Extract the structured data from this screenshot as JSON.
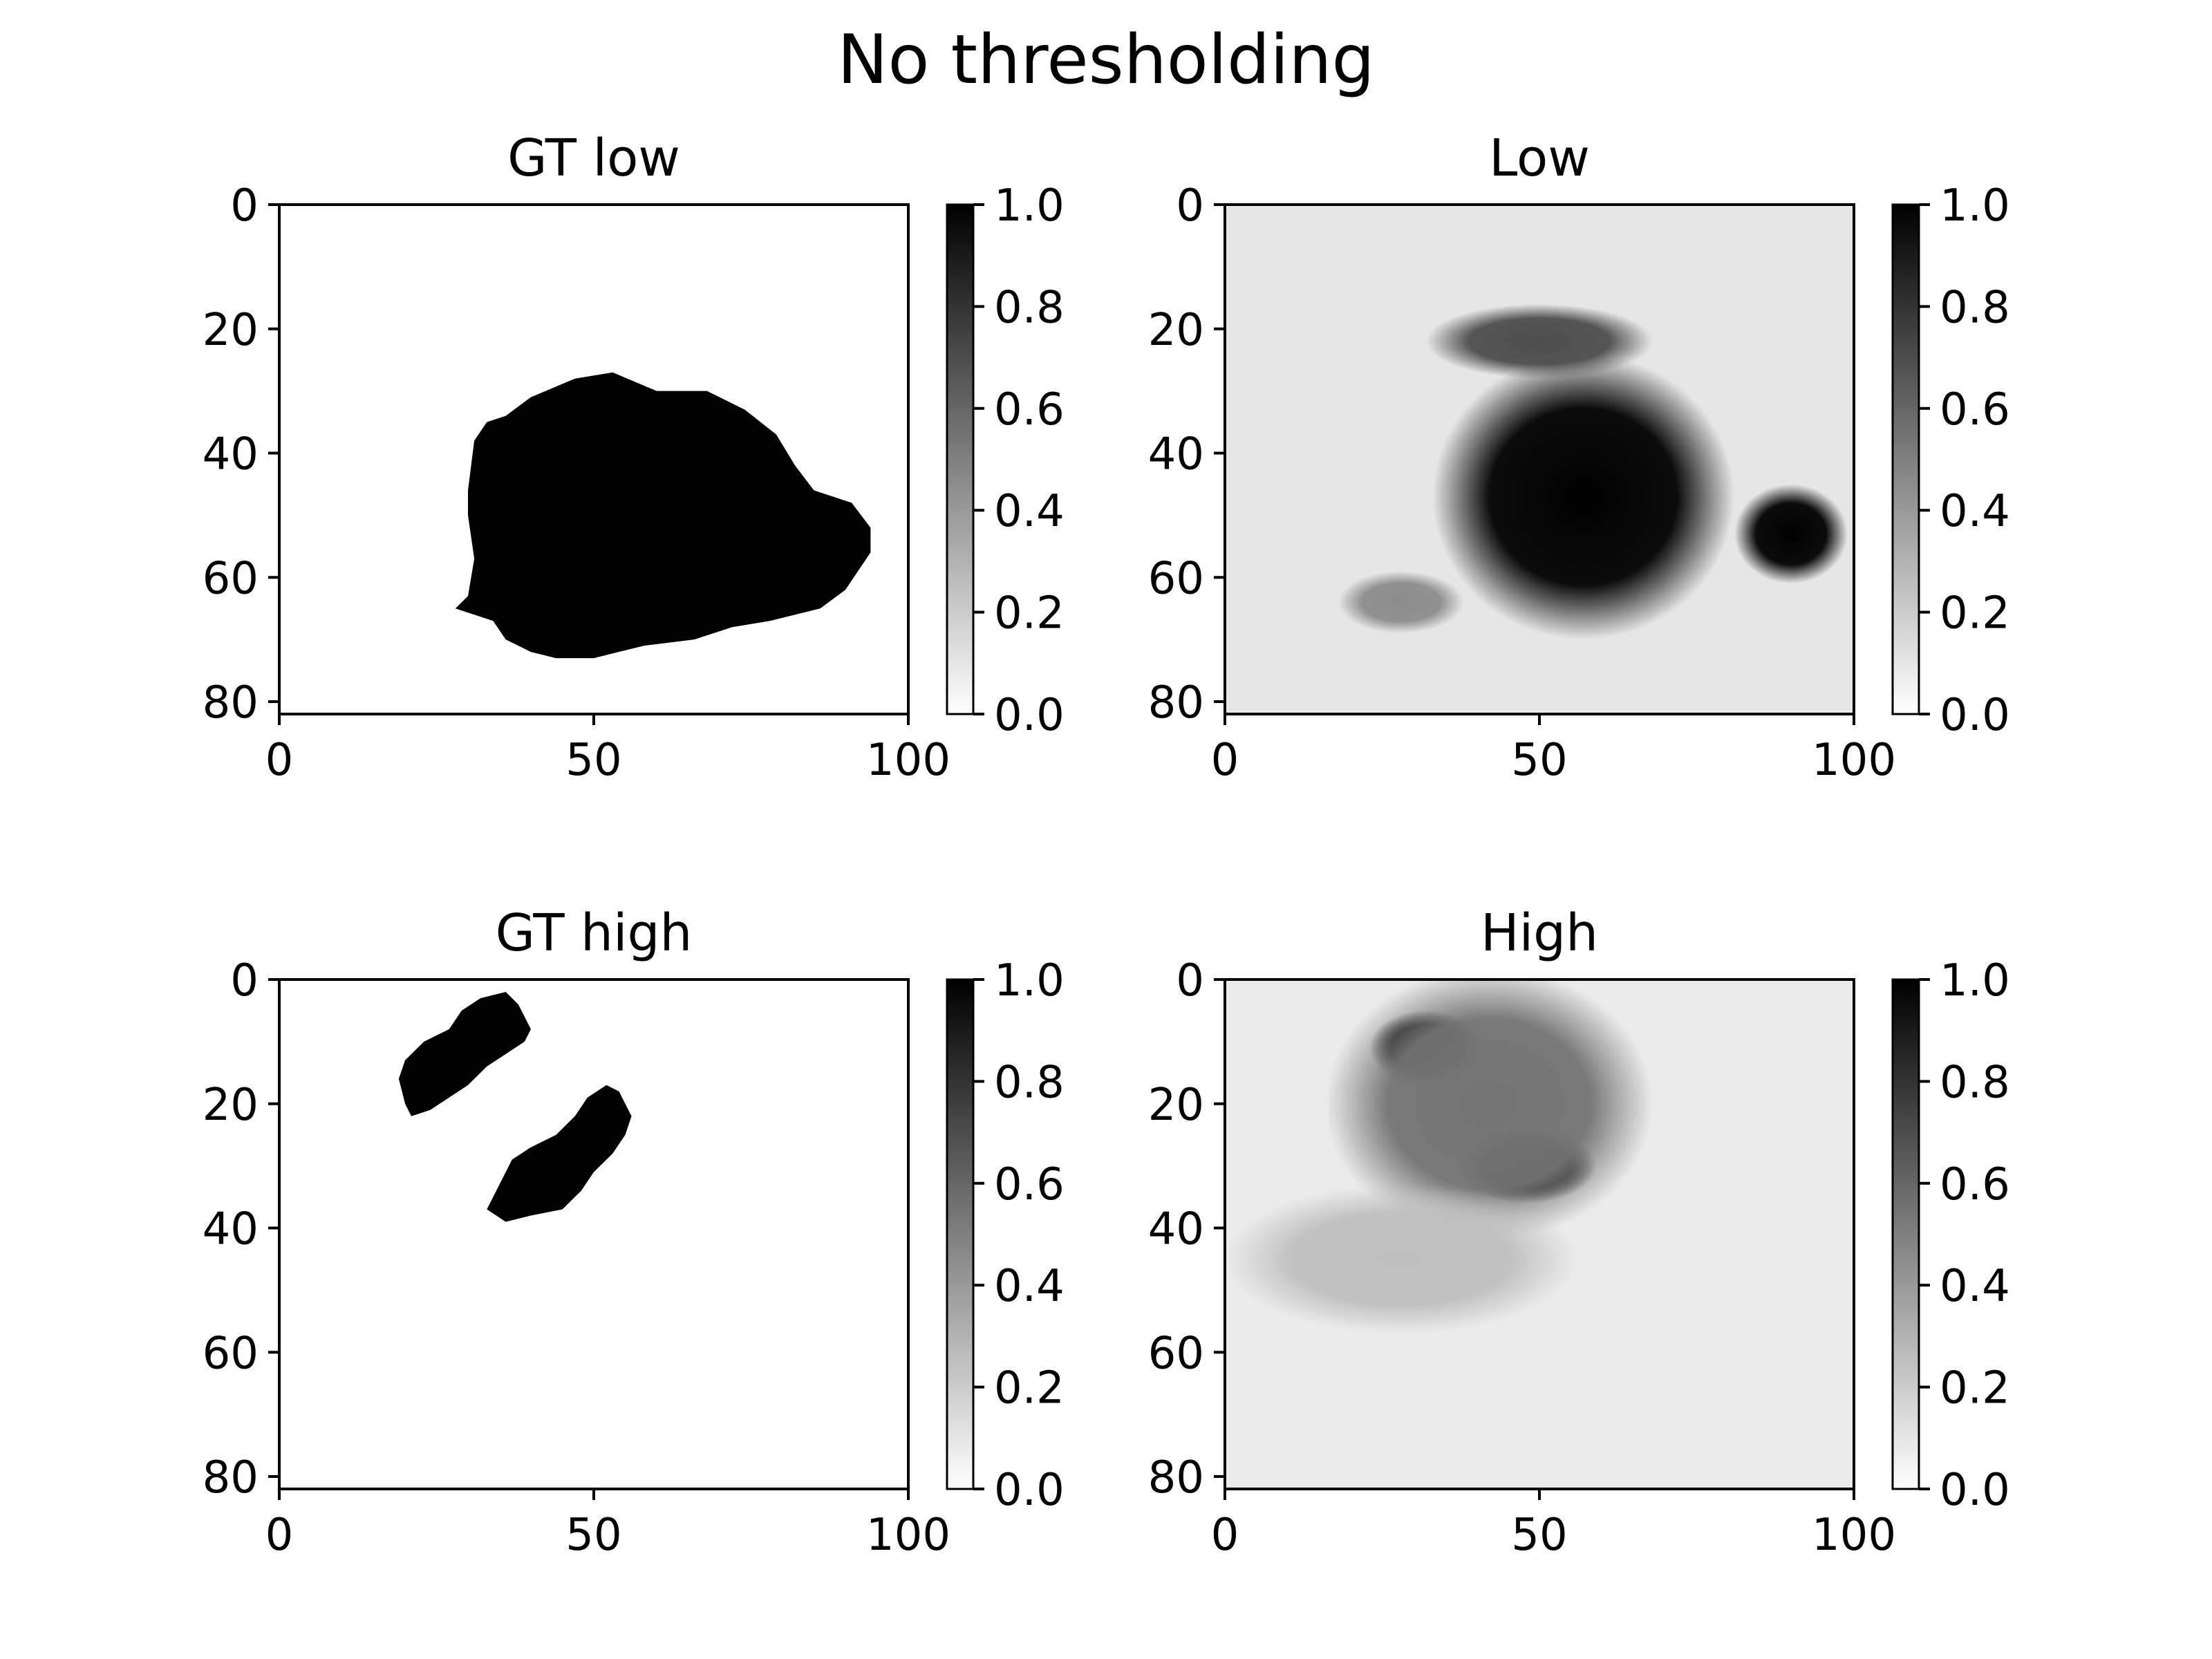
{
  "chart_data": {
    "type": "heatmap",
    "suptitle": "No thresholding",
    "colormap": "gray_r",
    "colorbar": {
      "ticks": [
        0.0,
        0.2,
        0.4,
        0.6,
        0.8,
        1.0
      ],
      "labels": [
        "0.0",
        "0.2",
        "0.4",
        "0.6",
        "0.8",
        "1.0"
      ]
    },
    "x_ticks": [
      0,
      50,
      100
    ],
    "x_tick_labels": [
      "0",
      "50",
      "100"
    ],
    "y_ticks": [
      0,
      20,
      40,
      60,
      80
    ],
    "y_tick_labels": [
      "0",
      "20",
      "40",
      "60",
      "80"
    ],
    "xlim": [
      0,
      100
    ],
    "ylim": [
      82,
      0
    ],
    "grid": false,
    "panels": [
      {
        "title": "GT low",
        "kind": "binary_mask",
        "regions": [
          {
            "outline": [
              [
                28,
                65
              ],
              [
                30,
                63
              ],
              [
                31,
                57
              ],
              [
                30,
                50
              ],
              [
                30,
                46
              ],
              [
                31,
                38
              ],
              [
                33,
                35
              ],
              [
                36,
                34
              ],
              [
                40,
                31
              ],
              [
                47,
                28
              ],
              [
                53,
                27
              ],
              [
                60,
                30
              ],
              [
                68,
                30
              ],
              [
                74,
                33
              ],
              [
                79,
                37
              ],
              [
                82,
                42
              ],
              [
                85,
                46
              ],
              [
                91,
                48
              ],
              [
                94,
                52
              ],
              [
                94,
                56
              ],
              [
                92,
                59
              ],
              [
                90,
                62
              ],
              [
                86,
                65
              ],
              [
                82,
                66
              ],
              [
                78,
                67
              ],
              [
                72,
                68
              ],
              [
                66,
                70
              ],
              [
                58,
                71
              ],
              [
                50,
                73
              ],
              [
                44,
                73
              ],
              [
                40,
                72
              ],
              [
                36,
                70
              ],
              [
                34,
                67
              ],
              [
                31,
                66
              ]
            ]
          }
        ]
      },
      {
        "title": "Low",
        "kind": "probability",
        "background": 0.1,
        "blobs": [
          {
            "cx": 57,
            "cy": 47,
            "rx": 24,
            "ry": 23,
            "peak": 1.0
          },
          {
            "cx": 90,
            "cy": 53,
            "rx": 9,
            "ry": 8,
            "peak": 1.0
          },
          {
            "cx": 50,
            "cy": 22,
            "rx": 18,
            "ry": 6,
            "peak": 0.7
          },
          {
            "cx": 28,
            "cy": 64,
            "rx": 10,
            "ry": 5,
            "peak": 0.45
          }
        ]
      },
      {
        "title": "GT high",
        "kind": "binary_mask",
        "regions": [
          {
            "outline": [
              [
                19,
                16
              ],
              [
                20,
                13
              ],
              [
                23,
                10
              ],
              [
                27,
                8
              ],
              [
                29,
                5
              ],
              [
                32,
                3
              ],
              [
                36,
                2
              ],
              [
                38,
                4
              ],
              [
                40,
                8
              ],
              [
                39,
                10
              ],
              [
                36,
                12
              ],
              [
                33,
                14
              ],
              [
                30,
                17
              ],
              [
                27,
                19
              ],
              [
                24,
                21
              ],
              [
                21,
                22
              ],
              [
                20,
                20
              ]
            ]
          },
          {
            "outline": [
              [
                33,
                37
              ],
              [
                35,
                33
              ],
              [
                37,
                29
              ],
              [
                40,
                27
              ],
              [
                44,
                25
              ],
              [
                47,
                22
              ],
              [
                49,
                19
              ],
              [
                52,
                17
              ],
              [
                54,
                18
              ],
              [
                56,
                22
              ],
              [
                55,
                25
              ],
              [
                53,
                28
              ],
              [
                50,
                31
              ],
              [
                48,
                34
              ],
              [
                45,
                37
              ],
              [
                40,
                38
              ],
              [
                36,
                39
              ]
            ]
          }
        ]
      },
      {
        "title": "High",
        "kind": "probability",
        "background": 0.08,
        "blobs": [
          {
            "cx": 32,
            "cy": 11,
            "rx": 9,
            "ry": 6,
            "peak": 1.0
          },
          {
            "cx": 48,
            "cy": 30,
            "rx": 11,
            "ry": 6,
            "peak": 1.0
          },
          {
            "cx": 42,
            "cy": 20,
            "rx": 26,
            "ry": 22,
            "peak": 0.55
          },
          {
            "cx": 28,
            "cy": 45,
            "rx": 28,
            "ry": 12,
            "peak": 0.25
          }
        ]
      }
    ]
  }
}
